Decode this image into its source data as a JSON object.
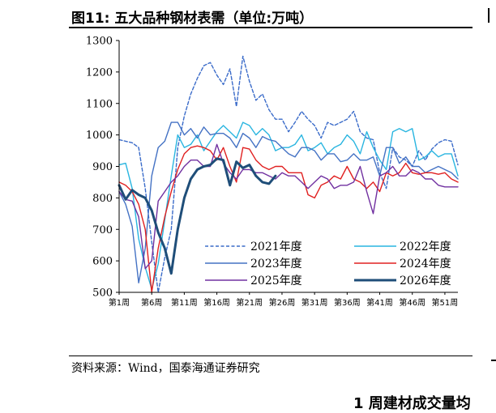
{
  "figure": {
    "title": "图11:  五大品种钢材表需（单位:万吨）",
    "source": "资料来源：Wind，国泰海通证券研究",
    "footer_peek": "1 周建材成交量均"
  },
  "chart_data": {
    "type": "line",
    "title": "",
    "xlabel": "",
    "ylabel": "",
    "ylim": [
      500,
      1300
    ],
    "yticks": [
      500,
      600,
      700,
      800,
      900,
      1000,
      1100,
      1200,
      1300
    ],
    "xrange": [
      1,
      53
    ],
    "xtick_labels": [
      "第1周",
      "第6周",
      "第11周",
      "第16周",
      "第21周",
      "第26周",
      "第31周",
      "第36周",
      "第41周",
      "第46周",
      "第51周"
    ],
    "xtick_weeks": [
      1,
      6,
      11,
      16,
      21,
      26,
      31,
      36,
      41,
      46,
      51
    ],
    "legend_position": "bottom-center",
    "series": [
      {
        "name": "2021年度",
        "color": "#3A6BC9",
        "dash": "dashed",
        "width": 1.4,
        "x": [
          1,
          2,
          3,
          4,
          5,
          6,
          7,
          8,
          9,
          10,
          11,
          12,
          13,
          14,
          15,
          16,
          17,
          18,
          19,
          20,
          21,
          22,
          23,
          24,
          25,
          26,
          27,
          28,
          29,
          30,
          31,
          32,
          33,
          34,
          35,
          36,
          37,
          38,
          39,
          40,
          41,
          42,
          43,
          44,
          45,
          46,
          47,
          48,
          49,
          50,
          51,
          52,
          53
        ],
        "values": [
          985,
          980,
          975,
          960,
          830,
          660,
          500,
          610,
          700,
          960,
          1060,
          1130,
          1180,
          1220,
          1230,
          1190,
          1160,
          1210,
          1090,
          1250,
          1170,
          1110,
          1130,
          1080,
          1050,
          1050,
          1010,
          1040,
          1075,
          1050,
          1030,
          990,
          1040,
          1030,
          1040,
          1050,
          1075,
          1010,
          990,
          985,
          880,
          830,
          960,
          930,
          920,
          900,
          950,
          920,
          955,
          975,
          985,
          980,
          905
        ]
      },
      {
        "name": "2022年度",
        "color": "#29B5E0",
        "dash": "solid",
        "width": 1.4,
        "x": [
          1,
          2,
          3,
          4,
          5,
          6,
          7,
          8,
          9,
          10,
          11,
          12,
          13,
          14,
          15,
          16,
          17,
          18,
          19,
          20,
          21,
          22,
          23,
          24,
          25,
          26,
          27,
          28,
          29,
          30,
          31,
          32,
          33,
          34,
          35,
          36,
          37,
          38,
          39,
          40,
          41,
          42,
          43,
          44,
          45,
          46,
          47,
          48,
          49,
          50,
          51,
          52,
          53
        ],
        "values": [
          905,
          910,
          830,
          670,
          580,
          510,
          590,
          730,
          870,
          1000,
          960,
          970,
          1000,
          950,
          980,
          1010,
          1030,
          1010,
          990,
          1040,
          1030,
          1000,
          1020,
          1000,
          950,
          960,
          960,
          970,
          1000,
          950,
          960,
          975,
          940,
          960,
          970,
          1000,
          980,
          940,
          1010,
          960,
          920,
          890,
          1010,
          1020,
          1010,
          1020,
          920,
          930,
          950,
          930,
          940,
          940,
          870
        ]
      },
      {
        "name": "2023年度",
        "color": "#4472C4",
        "dash": "solid",
        "width": 1.4,
        "x": [
          1,
          2,
          3,
          4,
          5,
          6,
          7,
          8,
          9,
          10,
          11,
          12,
          13,
          14,
          15,
          16,
          17,
          18,
          19,
          20,
          21,
          22,
          23,
          24,
          25,
          26,
          27,
          28,
          29,
          30,
          31,
          32,
          33,
          34,
          35,
          36,
          37,
          38,
          39,
          40,
          41,
          42,
          43,
          44,
          45,
          46,
          47,
          48,
          49,
          50,
          51,
          52,
          53
        ],
        "values": [
          820,
          780,
          710,
          530,
          640,
          870,
          960,
          980,
          1040,
          1040,
          1000,
          1020,
          990,
          1025,
          1000,
          1005,
          1005,
          990,
          960,
          1005,
          990,
          960,
          995,
          985,
          980,
          960,
          940,
          930,
          960,
          960,
          950,
          920,
          940,
          940,
          915,
          920,
          940,
          920,
          920,
          930,
          870,
          960,
          960,
          910,
          930,
          900,
          900,
          880,
          890,
          900,
          890,
          880,
          860
        ]
      },
      {
        "name": "2024年度",
        "color": "#E02020",
        "dash": "solid",
        "width": 1.4,
        "x": [
          1,
          2,
          3,
          4,
          5,
          6,
          7,
          8,
          9,
          10,
          11,
          12,
          13,
          14,
          15,
          16,
          17,
          18,
          19,
          20,
          21,
          22,
          23,
          24,
          25,
          26,
          27,
          28,
          29,
          30,
          31,
          32,
          33,
          34,
          35,
          36,
          37,
          38,
          39,
          40,
          41,
          42,
          43,
          44,
          45,
          46,
          47,
          48,
          49,
          50,
          51,
          52,
          53
        ],
        "values": [
          850,
          840,
          820,
          780,
          700,
          500,
          640,
          740,
          820,
          890,
          940,
          960,
          965,
          960,
          950,
          920,
          960,
          900,
          850,
          960,
          955,
          920,
          900,
          890,
          900,
          900,
          880,
          880,
          880,
          810,
          800,
          840,
          850,
          870,
          860,
          900,
          860,
          850,
          830,
          850,
          820,
          880,
          870,
          880,
          910,
          880,
          875,
          880,
          880,
          875,
          880,
          860,
          850
        ]
      },
      {
        "name": "2025年度",
        "color": "#7030A0",
        "dash": "solid",
        "width": 1.4,
        "x": [
          1,
          2,
          3,
          4,
          5,
          6,
          7,
          8,
          9,
          10,
          11,
          12,
          13,
          14,
          15,
          16,
          17,
          18,
          19,
          20,
          21,
          22,
          23,
          24,
          25,
          26,
          27,
          28,
          29,
          30,
          31,
          32,
          33,
          34,
          35,
          36,
          37,
          38,
          39,
          40,
          41,
          42,
          43,
          44,
          45,
          46,
          47,
          48,
          49,
          50,
          51,
          52,
          53
        ],
        "values": [
          820,
          795,
          790,
          740,
          575,
          600,
          790,
          820,
          850,
          870,
          900,
          920,
          920,
          900,
          900,
          970,
          910,
          880,
          860,
          890,
          890,
          880,
          880,
          870,
          860,
          880,
          870,
          870,
          850,
          830,
          850,
          870,
          860,
          830,
          840,
          840,
          850,
          900,
          820,
          750,
          870,
          880,
          900,
          870,
          870,
          890,
          880,
          860,
          860,
          840,
          835,
          835,
          835
        ]
      },
      {
        "name": "2026年度",
        "color": "#1F4E79",
        "dash": "solid",
        "width": 3,
        "x": [
          1,
          2,
          3,
          4,
          5,
          6,
          7,
          8,
          9,
          10,
          11,
          12,
          13,
          14,
          15,
          16,
          17,
          18,
          19,
          20,
          21,
          22,
          23,
          24,
          25
        ],
        "values": [
          840,
          795,
          825,
          810,
          800,
          760,
          690,
          640,
          560,
          700,
          800,
          860,
          890,
          900,
          905,
          925,
          920,
          840,
          915,
          895,
          905,
          870,
          850,
          845,
          870
        ]
      }
    ]
  }
}
